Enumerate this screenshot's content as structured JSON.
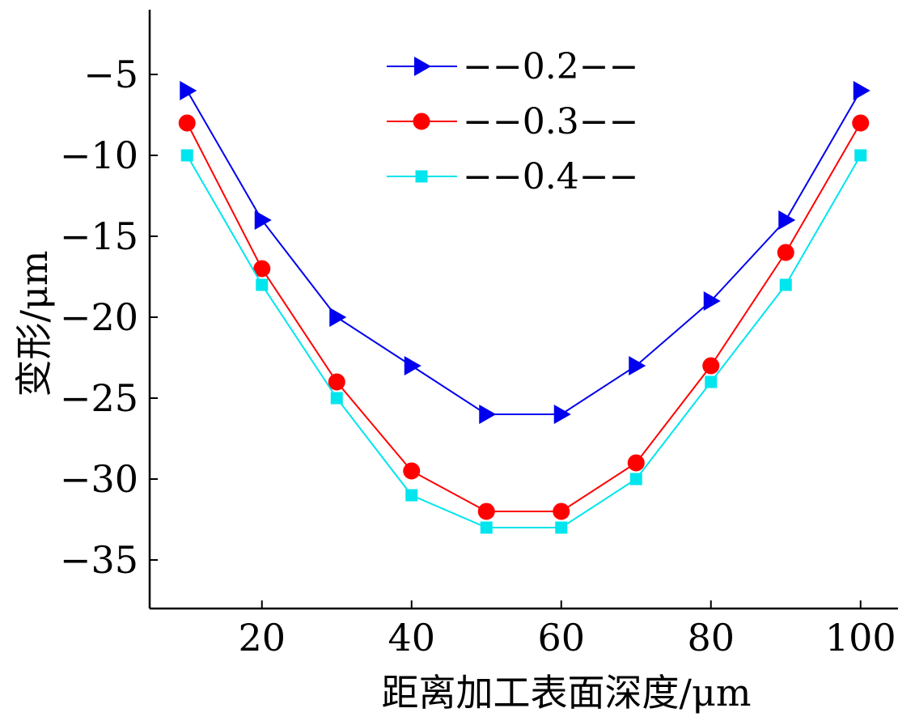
{
  "chart_data": {
    "type": "line",
    "title": "",
    "xlabel": "距离加工表面深度/μm",
    "ylabel": "变形/μm",
    "x": [
      10,
      20,
      30,
      40,
      50,
      60,
      70,
      80,
      90,
      100
    ],
    "xlim": [
      5,
      105
    ],
    "ylim": [
      -38,
      -1
    ],
    "xticks": [
      20,
      40,
      60,
      80,
      100
    ],
    "yticks": [
      -5,
      -10,
      -15,
      -20,
      -25,
      -30,
      -35
    ],
    "xtick_labels": [
      "20",
      "40",
      "60",
      "80",
      "100"
    ],
    "ytick_labels": [
      "−5",
      "−10",
      "−15",
      "−20",
      "−25",
      "−30",
      "−35"
    ],
    "grid": false,
    "legend_position": "top-center",
    "series": [
      {
        "name": "−−0.2−−",
        "color": "#0000ee",
        "marker": "triangle-right",
        "values": [
          -6,
          -14,
          -20,
          -23,
          -26,
          -26,
          -23,
          -19,
          -14,
          -6
        ]
      },
      {
        "name": "−−0.3−−",
        "color": "#ff0000",
        "marker": "circle",
        "values": [
          -8,
          -17,
          -24,
          -29.5,
          -32,
          -32,
          -29,
          -23,
          -16,
          -8
        ]
      },
      {
        "name": "−−0.4−−",
        "color": "#00e5ee",
        "marker": "square",
        "values": [
          -10,
          -18,
          -25,
          -31,
          -33,
          -33,
          -30,
          -24,
          -18,
          -10
        ]
      }
    ]
  }
}
